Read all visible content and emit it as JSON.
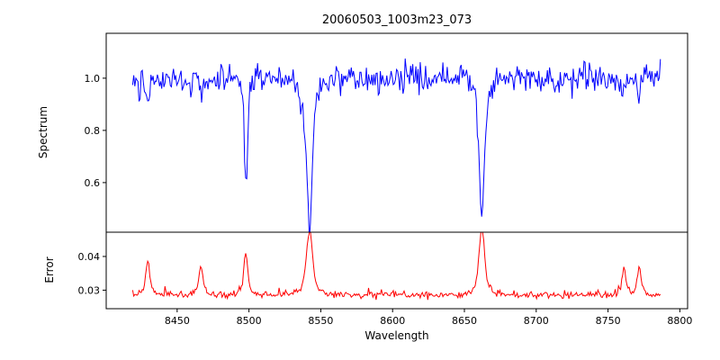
{
  "chart_data": [
    {
      "type": "line",
      "id": "spectrum",
      "title": "20060503_1003m23_073",
      "ylabel": "Spectrum",
      "line_color": "#0000ff",
      "xlim": [
        8400.6,
        8805.4
      ],
      "ylim": [
        0.41,
        1.172
      ],
      "yticks": [
        0.6,
        0.8,
        1.0
      ],
      "ytick_labels": [
        "0.6",
        "0.8",
        "1.0"
      ],
      "x_start": 8419,
      "x_end": 8787,
      "x_step": 0.75,
      "baseline": 1.0,
      "noise_sigma": 0.027,
      "noise_seed": 42,
      "spike_prob": 0.05,
      "spike_sign": -1,
      "spike_max": 0.09,
      "absorption_lines": [
        {
          "center": 8429.5,
          "depth": 0.1,
          "width": 1.0
        },
        {
          "center": 8466.5,
          "depth": 0.09,
          "width": 1.0
        },
        {
          "center": 8498.0,
          "depth": 0.37,
          "width": 1.1,
          "wing_depth": 0.04,
          "wing_width": 3.0
        },
        {
          "center": 8542.1,
          "depth": 0.46,
          "width": 1.9,
          "wing_depth": 0.1,
          "wing_width": 5.5
        },
        {
          "center": 8662.1,
          "depth": 0.44,
          "width": 1.7,
          "wing_depth": 0.09,
          "wing_width": 5.0
        },
        {
          "center": 8761.0,
          "depth": 0.08,
          "width": 1.0
        },
        {
          "center": 8771.5,
          "depth": 0.1,
          "width": 1.0
        }
      ]
    },
    {
      "type": "line",
      "id": "error",
      "ylabel": "Error",
      "xlabel": "Wavelength",
      "line_color": "#ff0000",
      "xlim": [
        8400.6,
        8805.4
      ],
      "ylim": [
        0.0245,
        0.0472
      ],
      "yticks": [
        0.03,
        0.04
      ],
      "ytick_labels": [
        "0.03",
        "0.04"
      ],
      "xticks": [
        8450,
        8500,
        8550,
        8600,
        8650,
        8700,
        8750,
        8800
      ],
      "xtick_labels": [
        "8450",
        "8500",
        "8550",
        "8600",
        "8650",
        "8700",
        "8750",
        "8800"
      ],
      "x_start": 8419,
      "x_end": 8787,
      "x_step": 0.75,
      "baseline": 0.0286,
      "noise_sigma": 0.0005,
      "noise_seed": 7,
      "spike_prob": 0.04,
      "spike_sign": 1,
      "spike_max": 0.0018,
      "peaks": [
        {
          "center": 8429.5,
          "height": 0.0082,
          "width": 1.2
        },
        {
          "center": 8466.5,
          "height": 0.007,
          "width": 1.3
        },
        {
          "center": 8497.8,
          "height": 0.0095,
          "width": 1.3
        },
        {
          "center": 8542.1,
          "height": 0.015,
          "width": 2.0
        },
        {
          "center": 8662.1,
          "height": 0.0155,
          "width": 1.8
        },
        {
          "center": 8761.0,
          "height": 0.006,
          "width": 1.2
        },
        {
          "center": 8771.5,
          "height": 0.0072,
          "width": 1.2
        }
      ]
    }
  ]
}
